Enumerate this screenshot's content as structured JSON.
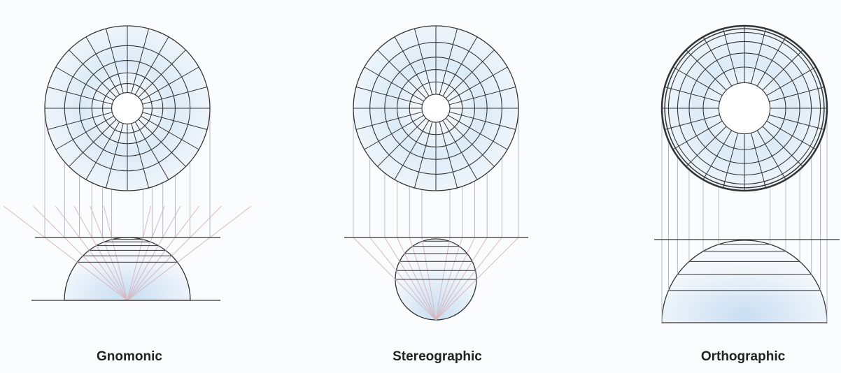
{
  "panels": [
    {
      "label": "Gnomonic"
    },
    {
      "label": "Stereographic"
    },
    {
      "label": "Orthographic"
    }
  ]
}
